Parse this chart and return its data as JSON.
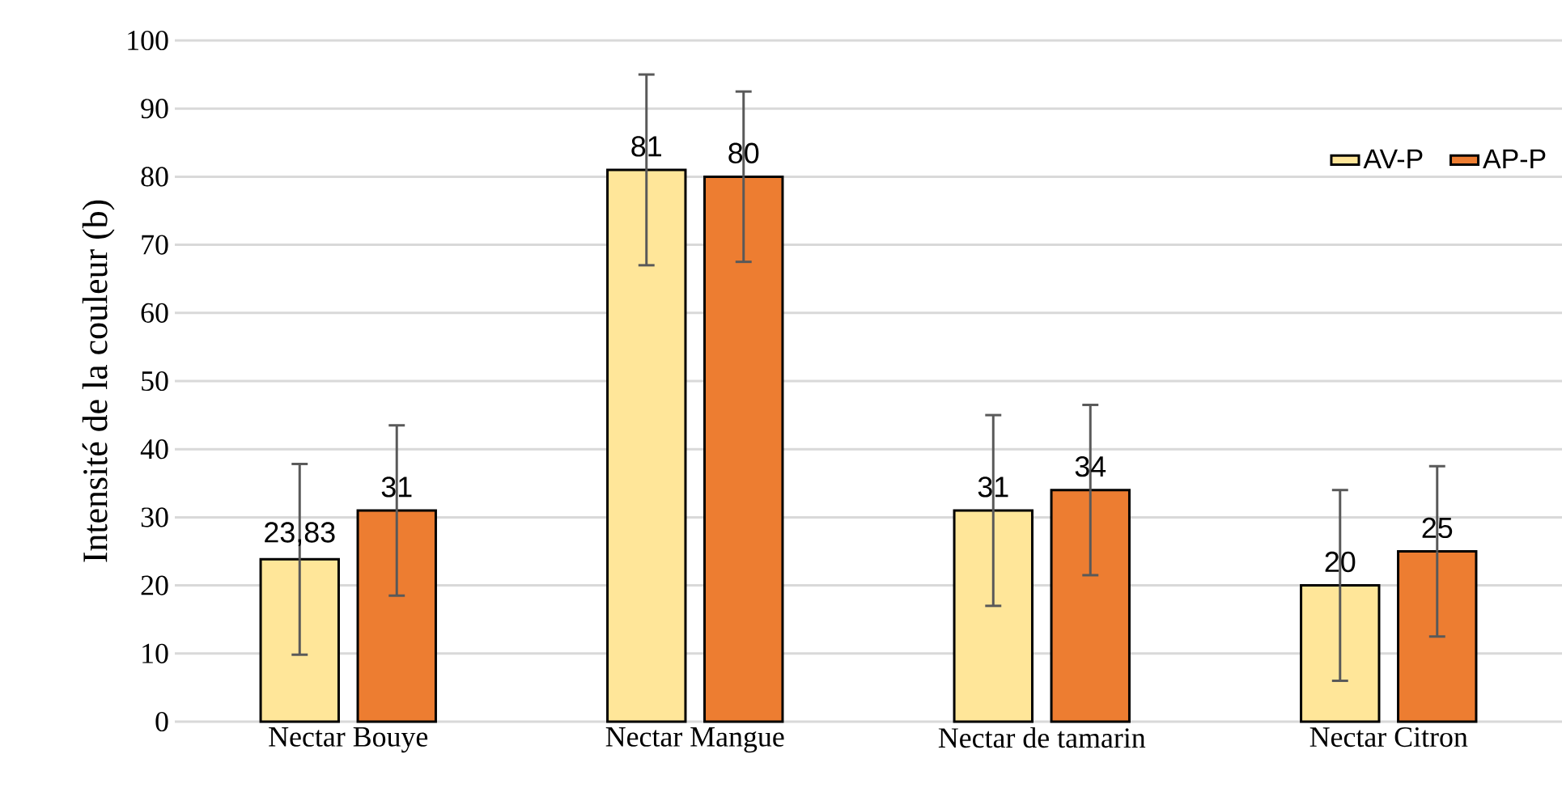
{
  "chart_data": {
    "type": "bar",
    "ylabel": "Intensité de la couleur (b)",
    "categories": [
      "Nectar Bouye",
      "Nectar Mangue",
      "Nectar de tamarin",
      "Nectar Citron"
    ],
    "series": [
      {
        "name": "AV-P",
        "color": "#ffe699",
        "values": [
          23.83,
          81,
          31,
          20
        ],
        "errors": [
          14,
          14,
          14,
          14
        ],
        "value_labels": [
          "23,83",
          "81",
          "31",
          "20"
        ]
      },
      {
        "name": "AP-P",
        "color": "#ed7d31",
        "values": [
          31,
          80,
          34,
          25
        ],
        "errors": [
          12.5,
          12.5,
          12.5,
          12.5
        ],
        "value_labels": [
          "31",
          "80",
          "34",
          "25"
        ]
      }
    ],
    "ylim": [
      0,
      100
    ],
    "yticks": [
      0,
      10,
      20,
      30,
      40,
      50,
      60,
      70,
      80,
      90,
      100
    ],
    "grid": "y",
    "legend": "top right"
  }
}
